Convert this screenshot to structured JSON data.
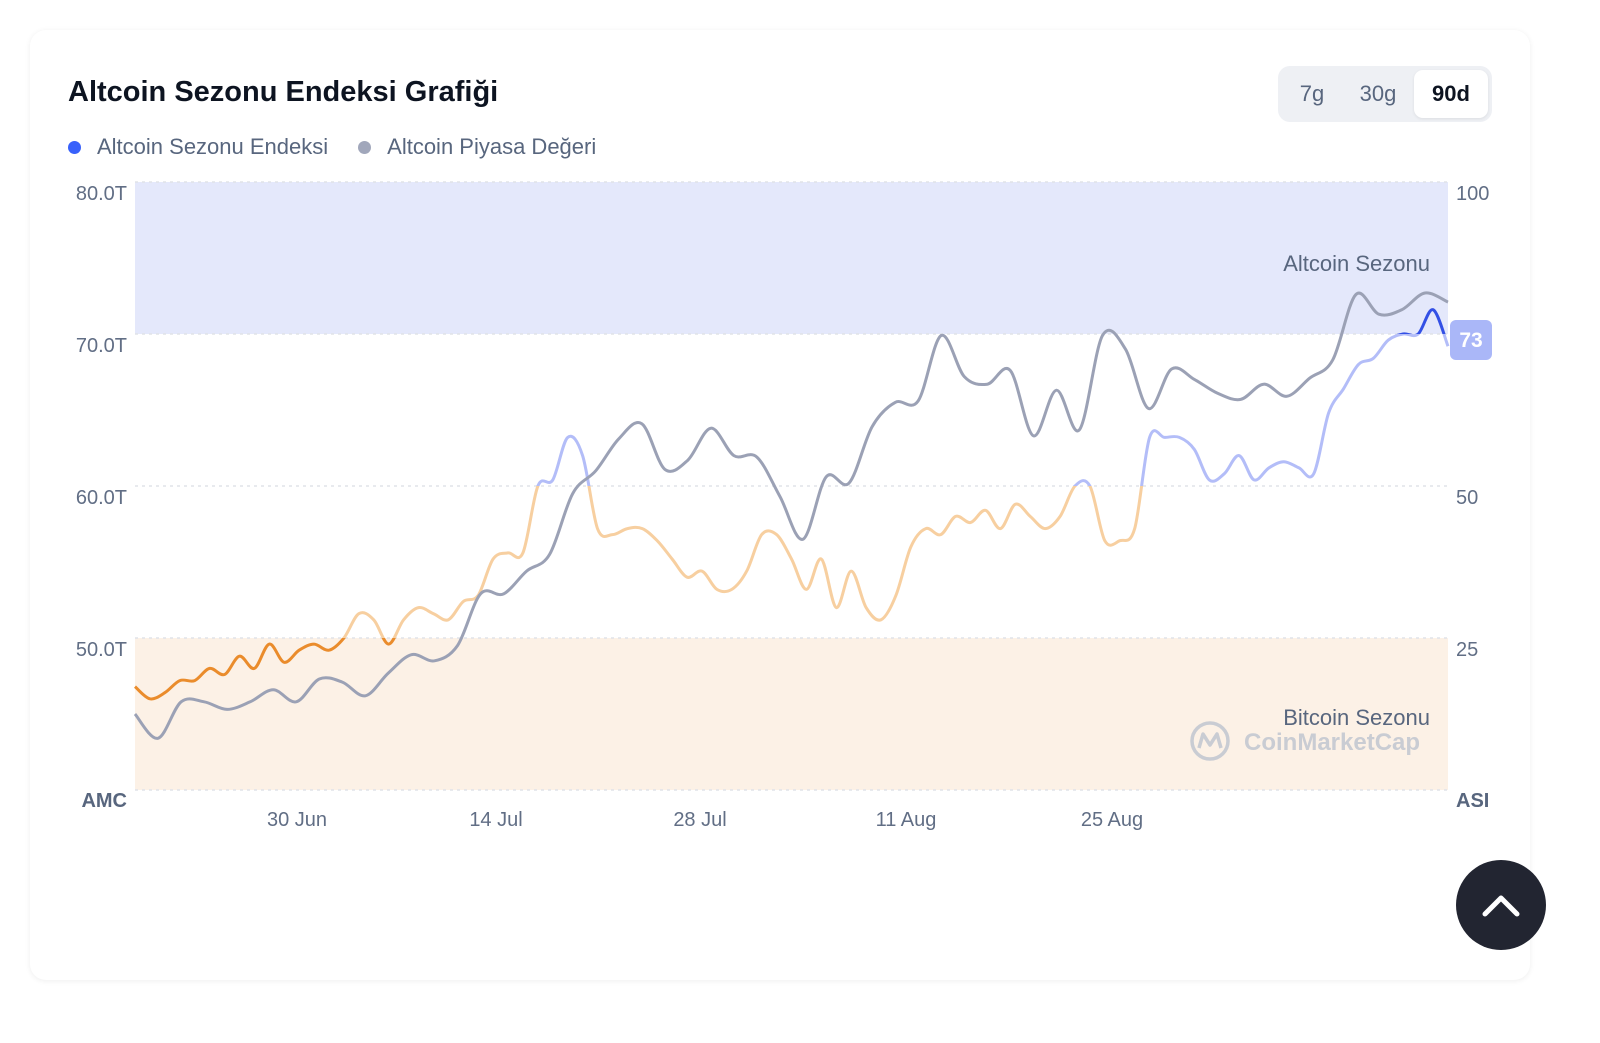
{
  "title": "Altcoin Sezonu Endeksi Grafiği",
  "legend": [
    {
      "label": "Altcoin Sezonu Endeksi",
      "color": "#3861fb"
    },
    {
      "label": "Altcoin Piyasa Değeri",
      "color": "#a1a7bb"
    }
  ],
  "tabs": [
    {
      "label": "7g",
      "active": false
    },
    {
      "label": "30g",
      "active": false
    },
    {
      "label": "90d",
      "active": true
    }
  ],
  "zones": {
    "altcoin_label": "Altcoin Sezonu",
    "bitcoin_label": "Bitcoin Sezonu"
  },
  "watermark": "CoinMarketCap",
  "current_badge": "73",
  "colors": {
    "altcoin_zone": "#e4e8fb",
    "bitcoin_zone": "#fcf1e6",
    "index_orange": "#ea8c2c",
    "index_orange_light": "#f7cfa0",
    "index_blue_light": "#b3bdf8",
    "index_blue": "#3350e5",
    "market_cap": "#9ba1b5",
    "badge": "#aab7f8"
  },
  "chart_data": {
    "type": "line",
    "x_tick_labels": [
      "30 Jun",
      "14 Jul",
      "28 Jul",
      "11 Aug",
      "25 Aug"
    ],
    "left_axis": {
      "ticks": [
        "80.0T",
        "70.0T",
        "60.0T",
        "50.0T",
        "AMC"
      ],
      "range": [
        40,
        80
      ],
      "unit": "T"
    },
    "right_axis": {
      "ticks": [
        "100",
        "50",
        "25",
        "ASI"
      ],
      "range": [
        0,
        100
      ]
    },
    "series": [
      {
        "name": "Altcoin Sezonu Endeksi",
        "axis": "right",
        "values": [
          17,
          15,
          16,
          18,
          18,
          20,
          19,
          22,
          20,
          24,
          21,
          23,
          24,
          23,
          25,
          29,
          28,
          24,
          28,
          30,
          29,
          28,
          31,
          32,
          38,
          39,
          39,
          50,
          51,
          58,
          55,
          43,
          42,
          43,
          43,
          41,
          38,
          35,
          36,
          33,
          33,
          36,
          42,
          42,
          38,
          33,
          38,
          30,
          36,
          30,
          28,
          32,
          40,
          43,
          42,
          45,
          44,
          46,
          43,
          47,
          45,
          43,
          45,
          50,
          50,
          41,
          41,
          43,
          58,
          58,
          58,
          56,
          51,
          52,
          55,
          51,
          53,
          54,
          53,
          52,
          62,
          66,
          70,
          71,
          74,
          75,
          75,
          79,
          73
        ]
      },
      {
        "name": "Altcoin Piyasa Değeri",
        "axis": "left",
        "values": [
          45.0,
          43.4,
          45.8,
          45.8,
          45.3,
          45.8,
          46.6,
          45.8,
          47.3,
          47.1,
          46.2,
          47.7,
          48.9,
          48.5,
          49.5,
          52.9,
          52.9,
          54.4,
          55.5,
          59.5,
          61.0,
          63.1,
          64.1,
          61.1,
          61.7,
          63.8,
          62.0,
          61.9,
          59.3,
          56.5,
          60.6,
          60.2,
          63.9,
          65.5,
          65.6,
          69.9,
          67.2,
          66.7,
          67.6,
          63.3,
          66.3,
          63.7,
          69.9,
          69.0,
          65.1,
          67.7,
          67.0,
          66.1,
          65.7,
          66.7,
          65.9,
          67.1,
          68.3,
          72.6,
          71.3,
          71.6,
          72.7,
          72.1
        ]
      }
    ]
  }
}
